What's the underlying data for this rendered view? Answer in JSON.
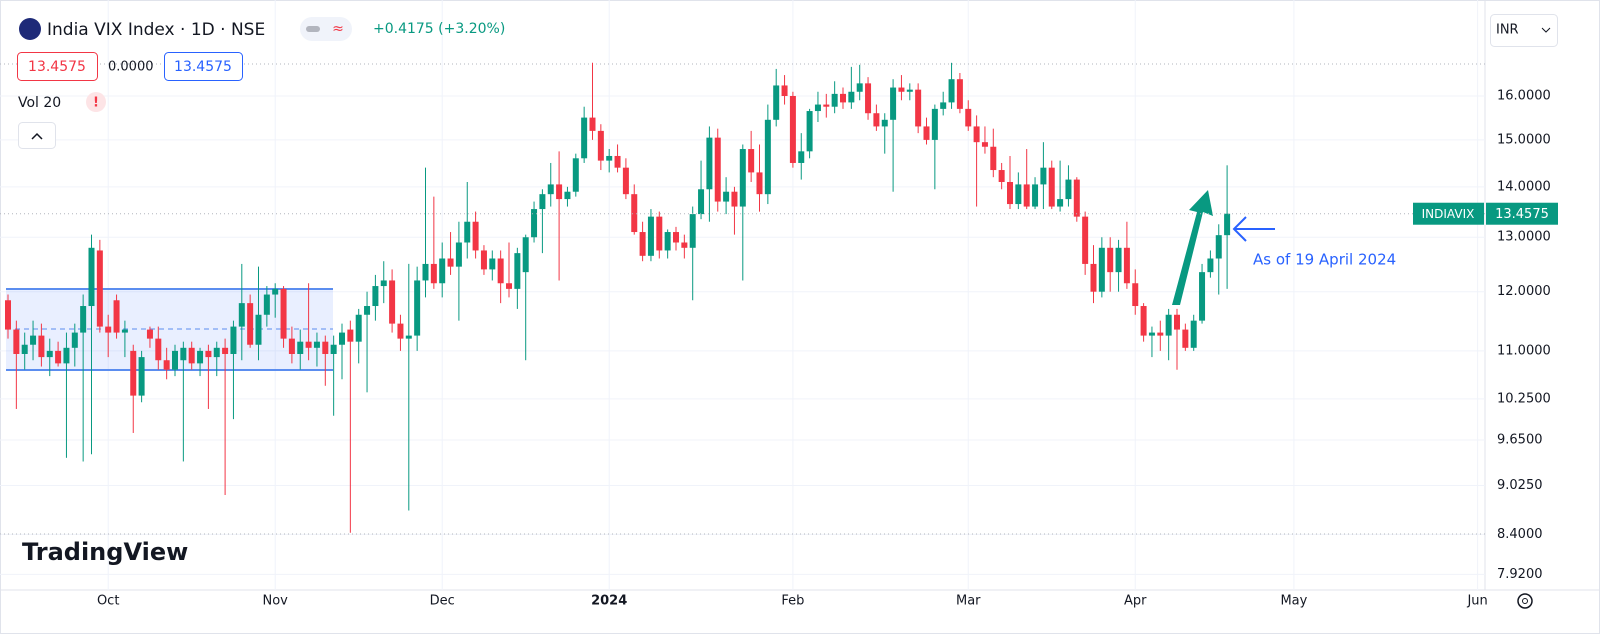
{
  "header": {
    "title": "India VIX Index · 1D · NSE",
    "change": "+0.4175 (+3.20%)",
    "price_boxes": [
      "13.4575",
      "0.0000",
      "13.4575"
    ],
    "indicator": "Vol 20",
    "indicator_alert": "!",
    "currency": "INR",
    "logo": "TradingView"
  },
  "chart_data": {
    "type": "candlestick",
    "categories": [
      null,
      null,
      null,
      null,
      null,
      null,
      null,
      null,
      null,
      null,
      null,
      null,
      "Oct",
      null,
      null,
      null,
      null,
      null,
      null,
      null,
      null,
      null,
      null,
      null,
      null,
      null,
      null,
      null,
      null,
      null,
      null,
      null,
      "Nov",
      null,
      null,
      null,
      null,
      null,
      null,
      null,
      null,
      null,
      null,
      null,
      null,
      null,
      null,
      null,
      null,
      null,
      null,
      null,
      "Dec",
      null,
      null,
      null,
      null,
      null,
      null,
      null,
      null,
      null,
      null,
      null,
      null,
      null,
      null,
      null,
      null,
      null,
      null,
      null,
      "2024",
      null,
      null,
      null,
      null,
      null,
      null,
      null,
      null,
      null,
      null,
      null,
      null,
      null,
      null,
      null,
      null,
      null,
      null,
      null,
      null,
      null,
      "Feb",
      null,
      null,
      null,
      null,
      null,
      null,
      null,
      null,
      null,
      null,
      null,
      null,
      null,
      null,
      null,
      null,
      null,
      null,
      null,
      null,
      "Mar",
      null,
      null,
      null,
      null,
      null,
      null,
      null,
      null,
      null,
      null,
      null,
      null,
      null,
      null,
      null,
      null,
      null,
      null,
      null,
      "Apr",
      null,
      null,
      null,
      null,
      null,
      null,
      null,
      null,
      null,
      null,
      null,
      null,
      null,
      null,
      null,
      null,
      null,
      null,
      "May",
      null,
      null,
      null,
      null,
      null,
      null,
      null,
      null,
      null,
      null,
      null,
      null,
      null,
      null,
      null,
      null,
      null,
      null,
      null,
      null,
      null,
      "Jun",
      null
    ],
    "series": [
      {
        "name": "INDIAVIX",
        "color_up": "#089981",
        "color_down": "#f23645",
        "open": [
          11.85,
          11.35,
          10.95,
          11.1,
          11.25,
          10.9,
          11.0,
          10.8,
          11.05,
          11.3,
          11.75,
          12.75,
          11.4,
          11.85,
          11.3,
          11.0,
          10.3,
          11.35,
          11.2,
          10.85,
          10.7,
          10.85,
          11.05,
          10.8,
          11.0,
          10.9,
          11.05,
          10.95,
          11.4,
          11.8,
          11.1,
          11.6,
          11.95,
          12.05,
          11.2,
          10.95,
          11.15,
          11.05,
          11.15,
          10.95,
          11.1,
          11.35,
          11.15,
          11.6,
          11.75,
          12.1,
          12.2,
          11.45,
          11.2,
          11.25,
          12.2,
          12.5,
          12.15,
          12.6,
          12.45,
          12.9,
          13.3,
          12.75,
          12.4,
          12.6,
          12.15,
          12.05,
          12.35,
          13.0,
          13.55,
          13.85,
          14.05,
          13.75,
          13.9,
          14.6,
          15.5,
          15.2,
          14.55,
          14.65,
          14.4,
          13.85,
          13.1,
          12.65,
          13.4,
          12.75,
          13.1,
          12.9,
          12.8,
          13.45,
          13.95,
          15.05,
          13.7,
          13.9,
          13.6,
          14.8,
          14.3,
          13.85,
          15.45,
          16.25,
          16.0,
          14.5,
          14.75,
          15.65,
          15.8,
          15.75,
          16.05,
          15.85,
          16.1,
          16.3,
          15.6,
          15.3,
          15.45,
          16.2,
          16.1,
          16.15,
          15.3,
          15.0,
          15.7,
          15.85,
          16.4,
          15.7,
          15.3,
          14.95,
          14.85,
          14.35,
          14.1,
          13.65,
          14.05,
          13.6,
          14.05,
          14.4,
          13.6,
          13.75,
          14.15,
          13.4,
          12.5,
          12.0,
          12.8,
          12.35,
          12.8,
          12.15,
          11.75,
          11.25,
          11.3,
          11.25,
          11.6,
          11.35,
          11.05,
          11.5,
          12.35,
          12.6,
          13.04,
          null,
          null,
          null,
          null,
          null,
          null,
          null,
          null,
          null,
          null,
          null,
          null,
          null,
          null,
          null,
          null,
          null,
          null,
          null,
          null,
          null,
          null,
          null,
          null,
          null,
          null,
          null,
          null,
          null,
          null,
          null
        ],
        "high": [
          11.95,
          11.5,
          11.3,
          11.5,
          11.45,
          11.2,
          11.15,
          11.3,
          11.45,
          11.95,
          13.05,
          12.95,
          11.6,
          11.95,
          11.5,
          11.1,
          11.0,
          11.4,
          11.4,
          11.05,
          11.1,
          11.15,
          11.15,
          11.05,
          11.1,
          11.15,
          11.2,
          11.5,
          12.5,
          11.95,
          12.45,
          12.1,
          12.15,
          12.1,
          11.4,
          11.35,
          12.15,
          11.3,
          11.25,
          11.25,
          11.45,
          11.5,
          11.7,
          12.0,
          12.3,
          12.55,
          12.4,
          11.6,
          12.5,
          12.45,
          14.4,
          13.8,
          12.9,
          13.1,
          13.3,
          14.1,
          13.5,
          12.85,
          12.75,
          12.75,
          12.9,
          12.8,
          13.05,
          13.7,
          13.95,
          14.5,
          14.75,
          14.0,
          14.7,
          15.75,
          16.8,
          15.35,
          14.8,
          14.9,
          14.6,
          14.05,
          13.3,
          13.55,
          13.5,
          13.15,
          13.2,
          13.05,
          13.6,
          14.55,
          15.3,
          15.25,
          14.2,
          14.0,
          14.9,
          15.2,
          14.9,
          15.8,
          16.65,
          16.5,
          16.1,
          15.15,
          15.7,
          16.1,
          16.05,
          16.35,
          16.2,
          16.7,
          16.75,
          16.45,
          15.8,
          15.6,
          16.4,
          16.5,
          16.3,
          16.3,
          15.5,
          15.8,
          16.1,
          16.8,
          16.55,
          15.9,
          15.55,
          15.3,
          15.25,
          14.5,
          14.65,
          14.3,
          14.8,
          14.2,
          14.95,
          14.55,
          14.55,
          14.45,
          14.2,
          13.5,
          12.85,
          13.0,
          13.0,
          12.95,
          13.3,
          12.4,
          11.8,
          11.4,
          11.5,
          11.7,
          11.7,
          11.45,
          11.6,
          12.5,
          12.75,
          13.25,
          14.45,
          null,
          null,
          null,
          null,
          null,
          null,
          null,
          null,
          null,
          null,
          null,
          null,
          null,
          null,
          null,
          null,
          null,
          null,
          null,
          null,
          null,
          null,
          null,
          null,
          null,
          null,
          null,
          null,
          null,
          null,
          null
        ],
        "low": [
          11.2,
          10.1,
          10.7,
          10.85,
          10.75,
          10.6,
          10.75,
          9.4,
          10.75,
          9.35,
          9.45,
          11.3,
          10.9,
          11.2,
          10.9,
          9.75,
          10.2,
          11.05,
          10.7,
          10.55,
          10.6,
          9.35,
          10.7,
          10.6,
          10.1,
          10.6,
          8.9,
          9.95,
          10.85,
          11.05,
          10.85,
          11.4,
          11.55,
          11.05,
          10.8,
          10.7,
          10.85,
          10.75,
          10.45,
          10.0,
          10.55,
          8.42,
          10.8,
          10.35,
          11.5,
          11.8,
          11.3,
          11.0,
          8.7,
          11.0,
          11.9,
          12.05,
          11.9,
          12.3,
          11.5,
          12.6,
          12.6,
          12.3,
          12.2,
          11.8,
          11.9,
          11.7,
          10.85,
          12.9,
          12.7,
          13.6,
          12.2,
          13.6,
          13.8,
          14.5,
          15.0,
          14.35,
          14.3,
          14.3,
          13.75,
          13.05,
          12.55,
          12.55,
          12.6,
          12.6,
          12.75,
          12.6,
          11.85,
          13.35,
          13.3,
          13.5,
          13.45,
          13.05,
          12.2,
          14.1,
          13.5,
          13.65,
          15.3,
          15.8,
          14.4,
          14.15,
          14.6,
          15.4,
          15.5,
          15.6,
          15.7,
          15.7,
          15.9,
          15.45,
          15.2,
          14.7,
          13.9,
          15.9,
          15.9,
          15.15,
          14.9,
          13.95,
          15.55,
          15.7,
          15.6,
          15.2,
          13.6,
          14.7,
          14.2,
          13.95,
          13.55,
          13.55,
          13.55,
          13.55,
          13.55,
          13.55,
          13.5,
          13.6,
          13.3,
          12.3,
          11.8,
          11.9,
          12.0,
          12.0,
          12.05,
          11.6,
          11.15,
          10.9,
          11.0,
          10.85,
          10.7,
          11.0,
          11.0,
          11.45,
          12.25,
          11.95,
          12.05,
          null,
          null,
          null,
          null,
          null,
          null,
          null,
          null,
          null,
          null,
          null,
          null,
          null,
          null,
          null,
          null,
          null,
          null,
          null,
          null,
          null,
          null,
          null,
          null,
          null,
          null,
          null,
          null,
          null,
          null,
          null
        ],
        "close": [
          11.35,
          10.95,
          11.1,
          11.25,
          10.9,
          11.0,
          10.8,
          11.05,
          11.3,
          11.75,
          12.8,
          11.4,
          11.3,
          11.3,
          11.35,
          10.3,
          10.9,
          11.2,
          10.85,
          10.7,
          11.0,
          11.05,
          10.8,
          11.0,
          10.9,
          11.05,
          10.95,
          11.4,
          11.8,
          11.1,
          11.6,
          11.95,
          12.05,
          11.2,
          10.95,
          11.15,
          11.05,
          11.15,
          10.95,
          11.1,
          11.3,
          11.15,
          11.6,
          11.75,
          12.1,
          12.2,
          11.45,
          11.2,
          11.25,
          12.2,
          12.5,
          12.15,
          12.6,
          12.45,
          12.9,
          13.3,
          12.75,
          12.4,
          12.6,
          12.15,
          12.05,
          12.7,
          13.0,
          13.55,
          13.85,
          14.05,
          13.75,
          13.9,
          14.6,
          15.5,
          15.2,
          14.55,
          14.65,
          14.4,
          13.85,
          13.1,
          12.65,
          13.4,
          12.75,
          13.1,
          12.9,
          12.8,
          13.45,
          13.95,
          15.05,
          13.7,
          13.9,
          13.6,
          14.8,
          14.3,
          13.85,
          15.45,
          16.25,
          16.0,
          14.5,
          14.75,
          15.65,
          15.8,
          15.75,
          16.05,
          15.85,
          16.1,
          16.3,
          15.6,
          15.3,
          15.45,
          16.2,
          16.1,
          16.15,
          15.3,
          15.0,
          15.7,
          15.85,
          16.4,
          15.7,
          15.3,
          14.95,
          14.85,
          14.35,
          14.1,
          13.65,
          14.05,
          13.6,
          14.05,
          14.4,
          13.6,
          13.75,
          14.15,
          13.4,
          12.5,
          12.0,
          12.8,
          12.35,
          12.8,
          12.15,
          11.75,
          11.25,
          11.3,
          11.25,
          11.6,
          11.35,
          11.05,
          11.5,
          12.35,
          12.6,
          13.04,
          13.4575,
          null,
          null,
          null,
          null,
          null,
          null,
          null,
          null,
          null,
          null,
          null,
          null,
          null,
          null,
          null,
          null,
          null,
          null,
          null,
          null,
          null,
          null,
          null,
          null,
          null,
          null,
          null,
          null,
          null,
          null,
          null
        ]
      }
    ],
    "ylim": [
      7.74,
      16.82
    ],
    "log_scale": true,
    "yticks": [
      {
        "value": 7.92,
        "label": "7.9200"
      },
      {
        "value": 8.4,
        "label": "8.4000"
      },
      {
        "value": 9.025,
        "label": "9.0250"
      },
      {
        "value": 9.65,
        "label": "9.6500"
      },
      {
        "value": 10.25,
        "label": "10.2500"
      },
      {
        "value": 11,
        "label": "11.0000"
      },
      {
        "value": 12,
        "label": "12.0000"
      },
      {
        "value": 13,
        "label": "13.0000"
      },
      {
        "value": 14,
        "label": "14.0000"
      },
      {
        "value": 15,
        "label": "15.0000"
      },
      {
        "value": 16,
        "label": "16.0000"
      }
    ],
    "grid": true,
    "annotation": "As of 19 April 2024"
  }
}
